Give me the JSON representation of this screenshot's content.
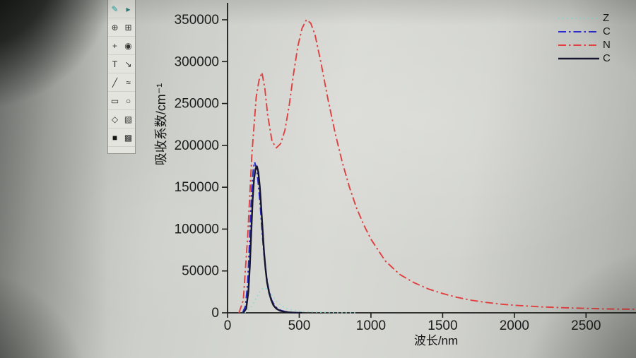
{
  "toolbar": {
    "icons": [
      {
        "name": "scribble-tool-icon",
        "glyph": "✎",
        "color": "#1fa8a8"
      },
      {
        "name": "pointer-tool-icon",
        "glyph": "▸",
        "color": "#2a7f7f"
      },
      {
        "name": "zoom-in-tool-icon",
        "glyph": "⊕",
        "color": "#333333"
      },
      {
        "name": "region-zoom-tool-icon",
        "glyph": "⊞",
        "color": "#333333"
      },
      {
        "name": "screen-reader-tool-icon",
        "glyph": "+",
        "color": "#333333"
      },
      {
        "name": "data-reader-tool-icon",
        "glyph": "◉",
        "color": "#333333"
      },
      {
        "name": "text-tool-icon",
        "glyph": "T",
        "color": "#222222"
      },
      {
        "name": "arrow-tool-icon",
        "glyph": "↘",
        "color": "#333333"
      },
      {
        "name": "line-tool-icon",
        "glyph": "╱",
        "color": "#333333"
      },
      {
        "name": "polyline-tool-icon",
        "glyph": "≈",
        "color": "#333333"
      },
      {
        "name": "rectangle-tool-icon",
        "glyph": "▭",
        "color": "#333333"
      },
      {
        "name": "ellipse-tool-icon",
        "glyph": "○",
        "color": "#333333"
      },
      {
        "name": "polygon-tool-icon",
        "glyph": "◇",
        "color": "#333333"
      },
      {
        "name": "pattern-tool-icon",
        "glyph": "▧",
        "color": "#333333"
      },
      {
        "name": "fill-color-icon",
        "glyph": "■",
        "color": "#161616"
      },
      {
        "name": "palette-icon",
        "glyph": "▩",
        "color": "#2b2b2b"
      }
    ]
  },
  "chart_data": {
    "type": "line",
    "title": "",
    "xlabel": "波长/nm",
    "ylabel": "吸收系数/cm⁻¹",
    "xlim": [
      0,
      2700
    ],
    "ylim": [
      0,
      350000
    ],
    "x_ticks": [
      0,
      500,
      1000,
      1500,
      2000,
      2500
    ],
    "y_ticks": [
      0,
      50000,
      100000,
      150000,
      200000,
      250000,
      300000,
      350000
    ],
    "grid": false,
    "legend_position": "top-right",
    "legend_note": "labels truncated at right edge of photo",
    "series": [
      {
        "name": "Z",
        "legend_label": "Z",
        "color": "#8fd8d4",
        "style": "dotted",
        "width": 1.8,
        "x": [
          120,
          160,
          190,
          220,
          250,
          280,
          310,
          340,
          370,
          400,
          440,
          490,
          550,
          620,
          700,
          800,
          900
        ],
        "y": [
          0,
          6000,
          14000,
          24000,
          30000,
          28000,
          21000,
          14000,
          9000,
          6000,
          3800,
          2400,
          1500,
          900,
          500,
          200,
          0
        ]
      },
      {
        "name": "C",
        "legend_label": "C",
        "color": "#2a2ace",
        "style": "dash-dot",
        "width": 2,
        "x": [
          105,
          125,
          140,
          150,
          160,
          170,
          180,
          188,
          196,
          206,
          216,
          228,
          240,
          252,
          264,
          278,
          292,
          308,
          325,
          345,
          370,
          400,
          440,
          490
        ],
        "y": [
          0,
          8000,
          35000,
          70000,
          115000,
          150000,
          172000,
          180000,
          176000,
          168000,
          152000,
          128000,
          100000,
          74000,
          53000,
          36000,
          24000,
          15000,
          9500,
          5500,
          3000,
          1500,
          600,
          0
        ]
      },
      {
        "name": "N",
        "legend_label": "N",
        "color": "#e04040",
        "style": "dash-dot",
        "width": 1.9,
        "x": [
          80,
          110,
          140,
          170,
          200,
          220,
          240,
          260,
          280,
          310,
          340,
          370,
          400,
          430,
          460,
          490,
          520,
          550,
          580,
          610,
          650,
          700,
          750,
          800,
          850,
          900,
          950,
          1000,
          1100,
          1200,
          1300,
          1400,
          1500,
          1600,
          1700,
          1800,
          1900,
          2000,
          2200,
          2400,
          2600,
          2700,
          2850
        ],
        "y": [
          0,
          15000,
          90000,
          190000,
          258000,
          278000,
          287000,
          268000,
          236000,
          205000,
          197000,
          202000,
          218000,
          248000,
          285000,
          318000,
          340000,
          350000,
          346000,
          332000,
          300000,
          255000,
          215000,
          180000,
          150000,
          125000,
          105000,
          88000,
          62000,
          46000,
          36000,
          28500,
          23000,
          18500,
          15000,
          12500,
          10500,
          9000,
          7000,
          5700,
          4800,
          4500,
          4300
        ]
      },
      {
        "name": "C",
        "legend_label": "C",
        "color": "#16162e",
        "style": "solid",
        "width": 2.4,
        "x": [
          110,
          130,
          145,
          155,
          165,
          175,
          185,
          195,
          205,
          215,
          225,
          235,
          245,
          255,
          265,
          275,
          290,
          305,
          320,
          340,
          365,
          395,
          430,
          470,
          520
        ],
        "y": [
          0,
          5000,
          25000,
          55000,
          95000,
          135000,
          160000,
          172000,
          175000,
          168000,
          150000,
          125000,
          98000,
          72000,
          52000,
          37000,
          24000,
          15000,
          9000,
          5000,
          2500,
          1200,
          500,
          200,
          0
        ]
      }
    ]
  }
}
